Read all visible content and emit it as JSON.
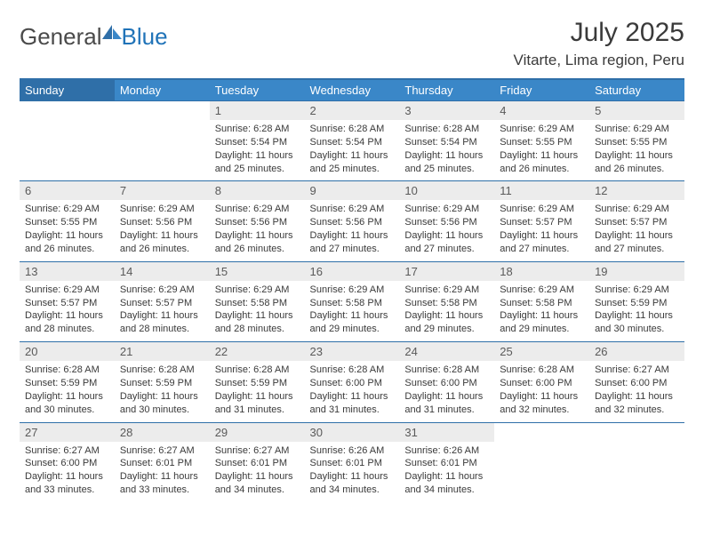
{
  "logo": {
    "text1": "General",
    "text2": "Blue"
  },
  "title": "July 2025",
  "location": "Vitarte, Lima region, Peru",
  "weekdays": [
    "Sunday",
    "Monday",
    "Tuesday",
    "Wednesday",
    "Thursday",
    "Friday",
    "Saturday"
  ],
  "colors": {
    "header_first": "#2f6fa8",
    "header_rest": "#3a87c8",
    "daynum_bg": "#ececec",
    "text": "#3a3a3a",
    "rule": "#2f6fa8"
  },
  "weeks": [
    [
      null,
      null,
      {
        "n": "1",
        "sr": "6:28 AM",
        "ss": "5:54 PM",
        "dl": "11 hours and 25 minutes."
      },
      {
        "n": "2",
        "sr": "6:28 AM",
        "ss": "5:54 PM",
        "dl": "11 hours and 25 minutes."
      },
      {
        "n": "3",
        "sr": "6:28 AM",
        "ss": "5:54 PM",
        "dl": "11 hours and 25 minutes."
      },
      {
        "n": "4",
        "sr": "6:29 AM",
        "ss": "5:55 PM",
        "dl": "11 hours and 26 minutes."
      },
      {
        "n": "5",
        "sr": "6:29 AM",
        "ss": "5:55 PM",
        "dl": "11 hours and 26 minutes."
      }
    ],
    [
      {
        "n": "6",
        "sr": "6:29 AM",
        "ss": "5:55 PM",
        "dl": "11 hours and 26 minutes."
      },
      {
        "n": "7",
        "sr": "6:29 AM",
        "ss": "5:56 PM",
        "dl": "11 hours and 26 minutes."
      },
      {
        "n": "8",
        "sr": "6:29 AM",
        "ss": "5:56 PM",
        "dl": "11 hours and 26 minutes."
      },
      {
        "n": "9",
        "sr": "6:29 AM",
        "ss": "5:56 PM",
        "dl": "11 hours and 27 minutes."
      },
      {
        "n": "10",
        "sr": "6:29 AM",
        "ss": "5:56 PM",
        "dl": "11 hours and 27 minutes."
      },
      {
        "n": "11",
        "sr": "6:29 AM",
        "ss": "5:57 PM",
        "dl": "11 hours and 27 minutes."
      },
      {
        "n": "12",
        "sr": "6:29 AM",
        "ss": "5:57 PM",
        "dl": "11 hours and 27 minutes."
      }
    ],
    [
      {
        "n": "13",
        "sr": "6:29 AM",
        "ss": "5:57 PM",
        "dl": "11 hours and 28 minutes."
      },
      {
        "n": "14",
        "sr": "6:29 AM",
        "ss": "5:57 PM",
        "dl": "11 hours and 28 minutes."
      },
      {
        "n": "15",
        "sr": "6:29 AM",
        "ss": "5:58 PM",
        "dl": "11 hours and 28 minutes."
      },
      {
        "n": "16",
        "sr": "6:29 AM",
        "ss": "5:58 PM",
        "dl": "11 hours and 29 minutes."
      },
      {
        "n": "17",
        "sr": "6:29 AM",
        "ss": "5:58 PM",
        "dl": "11 hours and 29 minutes."
      },
      {
        "n": "18",
        "sr": "6:29 AM",
        "ss": "5:58 PM",
        "dl": "11 hours and 29 minutes."
      },
      {
        "n": "19",
        "sr": "6:29 AM",
        "ss": "5:59 PM",
        "dl": "11 hours and 30 minutes."
      }
    ],
    [
      {
        "n": "20",
        "sr": "6:28 AM",
        "ss": "5:59 PM",
        "dl": "11 hours and 30 minutes."
      },
      {
        "n": "21",
        "sr": "6:28 AM",
        "ss": "5:59 PM",
        "dl": "11 hours and 30 minutes."
      },
      {
        "n": "22",
        "sr": "6:28 AM",
        "ss": "5:59 PM",
        "dl": "11 hours and 31 minutes."
      },
      {
        "n": "23",
        "sr": "6:28 AM",
        "ss": "6:00 PM",
        "dl": "11 hours and 31 minutes."
      },
      {
        "n": "24",
        "sr": "6:28 AM",
        "ss": "6:00 PM",
        "dl": "11 hours and 31 minutes."
      },
      {
        "n": "25",
        "sr": "6:28 AM",
        "ss": "6:00 PM",
        "dl": "11 hours and 32 minutes."
      },
      {
        "n": "26",
        "sr": "6:27 AM",
        "ss": "6:00 PM",
        "dl": "11 hours and 32 minutes."
      }
    ],
    [
      {
        "n": "27",
        "sr": "6:27 AM",
        "ss": "6:00 PM",
        "dl": "11 hours and 33 minutes."
      },
      {
        "n": "28",
        "sr": "6:27 AM",
        "ss": "6:01 PM",
        "dl": "11 hours and 33 minutes."
      },
      {
        "n": "29",
        "sr": "6:27 AM",
        "ss": "6:01 PM",
        "dl": "11 hours and 34 minutes."
      },
      {
        "n": "30",
        "sr": "6:26 AM",
        "ss": "6:01 PM",
        "dl": "11 hours and 34 minutes."
      },
      {
        "n": "31",
        "sr": "6:26 AM",
        "ss": "6:01 PM",
        "dl": "11 hours and 34 minutes."
      },
      null,
      null
    ]
  ],
  "labels": {
    "sunrise": "Sunrise:",
    "sunset": "Sunset:",
    "daylight": "Daylight:"
  }
}
